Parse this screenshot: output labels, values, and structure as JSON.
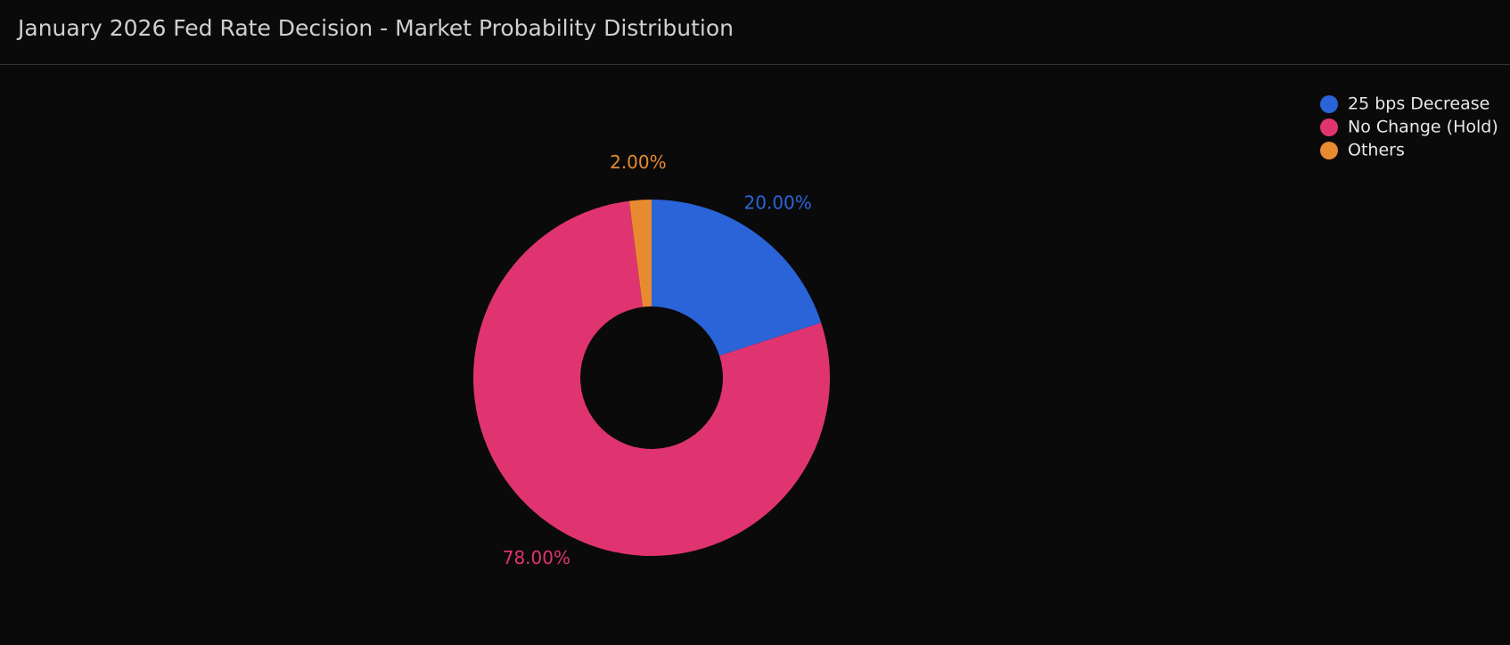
{
  "chart_data": {
    "type": "donut",
    "title": "January 2026 Fed Rate Decision - Market Probability Distribution",
    "categories": [
      "25 bps Decrease",
      "No Change (Hold)",
      "Others"
    ],
    "values": [
      20,
      78,
      2
    ],
    "value_labels": [
      "20.00%",
      "78.00%",
      "2.00%"
    ],
    "colors": [
      "#2a64d8",
      "#e03470",
      "#e88a30"
    ],
    "legend": "top-right"
  }
}
